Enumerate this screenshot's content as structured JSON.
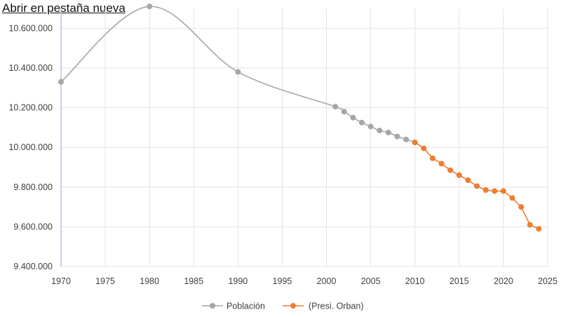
{
  "link": {
    "label": "Abrir en pestaña nueva"
  },
  "chart_data": {
    "type": "line",
    "title": "",
    "xlabel": "",
    "ylabel": "",
    "xlim": [
      1970,
      2025
    ],
    "ylim": [
      9400000,
      10700000
    ],
    "x_ticks": [
      1970,
      1975,
      1980,
      1985,
      1990,
      1995,
      2000,
      2005,
      2010,
      2015,
      2020,
      2025
    ],
    "y_ticks": [
      {
        "value": 9400000,
        "label": "9.400.000"
      },
      {
        "value": 9600000,
        "label": "9.600.000"
      },
      {
        "value": 9800000,
        "label": "9.800.000"
      },
      {
        "value": 10000000,
        "label": "10.000.000"
      },
      {
        "value": 10200000,
        "label": "10.200.000"
      },
      {
        "value": 10400000,
        "label": "10.400.000"
      },
      {
        "value": 10600000,
        "label": "10.600.000"
      }
    ],
    "grid": true,
    "legend_position": "bottom",
    "series": [
      {
        "name": "Población",
        "color": "#a6a6a6",
        "smooth": true,
        "x": [
          1970,
          1980,
          1990,
          2001,
          2002,
          2003,
          2004,
          2005,
          2006,
          2007,
          2008,
          2009,
          2010
        ],
        "y": [
          10330000,
          10710000,
          10380000,
          10205000,
          10180000,
          10150000,
          10125000,
          10105000,
          10085000,
          10075000,
          10055000,
          10040000,
          10025000
        ]
      },
      {
        "name": "(Presi. Orban)",
        "color": "#ed7d31",
        "smooth": false,
        "x": [
          2010,
          2011,
          2012,
          2013,
          2014,
          2015,
          2016,
          2017,
          2018,
          2019,
          2020,
          2021,
          2022,
          2023,
          2024
        ],
        "y": [
          10025000,
          9995000,
          9945000,
          9918000,
          9885000,
          9860000,
          9835000,
          9805000,
          9785000,
          9780000,
          9780000,
          9745000,
          9700000,
          9610000,
          9590000
        ]
      }
    ]
  }
}
